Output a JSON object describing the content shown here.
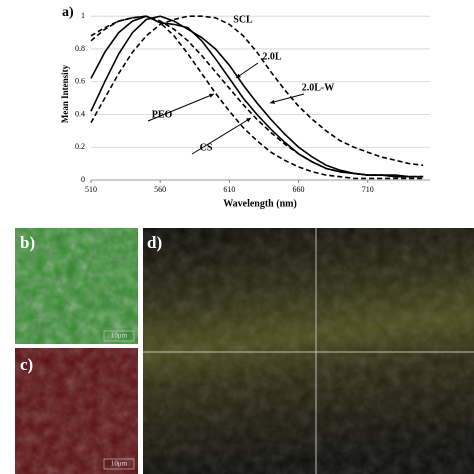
{
  "chart_data": {
    "type": "line",
    "label": "a)",
    "x_label": "Wavelength (nm)",
    "y_label": "Mean Intensity",
    "x": [
      510,
      520,
      530,
      540,
      550,
      560,
      570,
      580,
      590,
      600,
      610,
      620,
      630,
      640,
      650,
      660,
      670,
      680,
      690,
      700,
      710,
      720,
      730,
      740,
      750
    ],
    "series": [
      {
        "name": "SCL",
        "color": "#000000",
        "dashed": true,
        "values": [
          0.35,
          0.5,
          0.65,
          0.78,
          0.88,
          0.95,
          0.98,
          1.0,
          1.0,
          0.99,
          0.95,
          0.88,
          0.78,
          0.66,
          0.55,
          0.45,
          0.37,
          0.3,
          0.24,
          0.2,
          0.17,
          0.14,
          0.12,
          0.1,
          0.09
        ]
      },
      {
        "name": "2.0L",
        "color": "#000000",
        "dashed": false,
        "values": [
          0.62,
          0.78,
          0.9,
          0.97,
          1.0,
          0.96,
          0.95,
          0.93,
          0.85,
          0.74,
          0.62,
          0.5,
          0.4,
          0.31,
          0.23,
          0.16,
          0.11,
          0.07,
          0.05,
          0.04,
          0.03,
          0.03,
          0.03,
          0.02,
          0.02
        ]
      },
      {
        "name": "2.0L-W",
        "color": "#000000",
        "dashed": false,
        "values": [
          0.42,
          0.6,
          0.77,
          0.9,
          0.98,
          1.0,
          0.97,
          0.92,
          0.87,
          0.8,
          0.7,
          0.58,
          0.47,
          0.37,
          0.28,
          0.2,
          0.14,
          0.09,
          0.06,
          0.04,
          0.03,
          0.03,
          0.02,
          0.02,
          0.02
        ]
      },
      {
        "name": "PEO",
        "color": "#000000",
        "dashed": true,
        "values": [
          0.85,
          0.92,
          0.97,
          0.99,
          1.0,
          0.96,
          0.88,
          0.77,
          0.65,
          0.53,
          0.42,
          0.32,
          0.24,
          0.17,
          0.12,
          0.08,
          0.05,
          0.03,
          0.02,
          0.01,
          0.01,
          0.01,
          0.01,
          0.01,
          0.01
        ]
      },
      {
        "name": "CS",
        "color": "#000000",
        "dashed": true,
        "values": [
          0.88,
          0.93,
          0.97,
          0.99,
          1.0,
          0.97,
          0.92,
          0.85,
          0.76,
          0.66,
          0.56,
          0.46,
          0.37,
          0.29,
          0.22,
          0.16,
          0.11,
          0.07,
          0.05,
          0.04,
          0.03,
          0.03,
          0.02,
          0.02,
          0.02
        ]
      }
    ],
    "xlim": [
      510,
      755
    ],
    "xticks": [
      510,
      560,
      610,
      660,
      710
    ],
    "ylim": [
      0,
      1.05
    ],
    "yticks": [
      0,
      0.2,
      0.4,
      0.6,
      0.8,
      1
    ],
    "grid": true
  },
  "panels": [
    {
      "label": "b)",
      "scale_bar": "10μm"
    },
    {
      "label": "c)",
      "scale_bar": "10μm"
    },
    {
      "label": "d)"
    }
  ]
}
